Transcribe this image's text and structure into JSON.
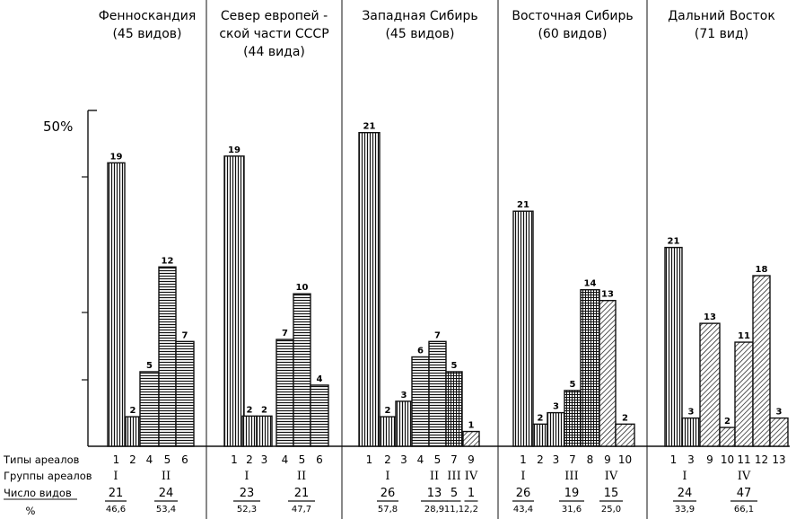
{
  "y_axis_label": "50%",
  "row_labels": {
    "types": "Типы ареалов",
    "groups": "Группы ареалов",
    "count": "Число видов",
    "percent": "%"
  },
  "chart_data": [
    {
      "type": "bar",
      "title_lines": [
        "Фенноскандия",
        "(45 видов)"
      ],
      "ylim": [
        0,
        50
      ],
      "bars": [
        {
          "type": "1",
          "value": 42.2,
          "label": "19",
          "pattern": "vertical"
        },
        {
          "type": "2",
          "value": 4.4,
          "label": "2",
          "pattern": "vertical"
        },
        {
          "type": "4",
          "value": 11.1,
          "label": "5",
          "pattern": "horizontal"
        },
        {
          "type": "5",
          "value": 26.7,
          "label": "12",
          "pattern": "horizontal"
        },
        {
          "type": "6",
          "value": 15.6,
          "label": "7",
          "pattern": "horizontal"
        }
      ],
      "groups": [
        {
          "name": "I",
          "count": "21",
          "percent": "46,6"
        },
        {
          "name": "II",
          "count": "24",
          "percent": "53,4"
        }
      ]
    },
    {
      "type": "bar",
      "title_lines": [
        "Север европей -",
        "ской части СССР",
        "(44 вида)"
      ],
      "ylim": [
        0,
        50
      ],
      "bars": [
        {
          "type": "1",
          "value": 43.2,
          "label": "19",
          "pattern": "vertical"
        },
        {
          "type": "2",
          "value": 4.5,
          "label": "2",
          "pattern": "vertical"
        },
        {
          "type": "3",
          "value": 4.5,
          "label": "2",
          "pattern": "vertical"
        },
        {
          "type": "4",
          "value": 15.9,
          "label": "7",
          "pattern": "horizontal"
        },
        {
          "type": "5",
          "value": 22.7,
          "label": "10",
          "pattern": "horizontal"
        },
        {
          "type": "6",
          "value": 9.1,
          "label": "4",
          "pattern": "horizontal"
        }
      ],
      "groups": [
        {
          "name": "I",
          "count": "23",
          "percent": "52,3"
        },
        {
          "name": "II",
          "count": "21",
          "percent": "47,7"
        }
      ]
    },
    {
      "type": "bar",
      "title_lines": [
        "Западная   Сибирь",
        "(45 видов)"
      ],
      "ylim": [
        0,
        50
      ],
      "bars": [
        {
          "type": "1",
          "value": 46.7,
          "label": "21",
          "pattern": "vertical"
        },
        {
          "type": "2",
          "value": 4.4,
          "label": "2",
          "pattern": "vertical"
        },
        {
          "type": "3",
          "value": 6.7,
          "label": "3",
          "pattern": "vertical"
        },
        {
          "type": "4",
          "value": 13.3,
          "label": "6",
          "pattern": "horizontal"
        },
        {
          "type": "5",
          "value": 15.6,
          "label": "7",
          "pattern": "horizontal"
        },
        {
          "type": "7",
          "value": 11.1,
          "label": "5",
          "pattern": "grid"
        },
        {
          "type": "9",
          "value": 2.2,
          "label": "1",
          "pattern": "diagonal"
        }
      ],
      "groups": [
        {
          "name": "I",
          "count": "26",
          "percent": "57,8"
        },
        {
          "name": "II",
          "count": "13",
          "percent": "28,9"
        },
        {
          "name": "III",
          "count": "5",
          "percent": "11,1"
        },
        {
          "name": "IV",
          "count": "1",
          "percent": "2,2"
        }
      ]
    },
    {
      "type": "bar",
      "title_lines": [
        "Восточная  Сибирь",
        "(60 видов)"
      ],
      "ylim": [
        0,
        50
      ],
      "bars": [
        {
          "type": "1",
          "value": 35.0,
          "label": "21",
          "pattern": "vertical"
        },
        {
          "type": "2",
          "value": 3.3,
          "label": "2",
          "pattern": "vertical"
        },
        {
          "type": "3",
          "value": 5.0,
          "label": "3",
          "pattern": "vertical"
        },
        {
          "type": "7",
          "value": 8.3,
          "label": "5",
          "pattern": "grid"
        },
        {
          "type": "8",
          "value": 23.3,
          "label": "14",
          "pattern": "grid"
        },
        {
          "type": "9",
          "value": 21.7,
          "label": "13",
          "pattern": "diagonal"
        },
        {
          "type": "10",
          "value": 3.3,
          "label": "2",
          "pattern": "diagonal"
        }
      ],
      "groups": [
        {
          "name": "I",
          "count": "26",
          "percent": "43,4"
        },
        {
          "name": "III",
          "count": "19",
          "percent": "31,6"
        },
        {
          "name": "IV",
          "count": "15",
          "percent": "25,0"
        }
      ]
    },
    {
      "type": "bar",
      "title_lines": [
        "Дальний Восток",
        "(71 вид)"
      ],
      "ylim": [
        0,
        50
      ],
      "bars": [
        {
          "type": "1",
          "value": 29.6,
          "label": "21",
          "pattern": "vertical"
        },
        {
          "type": "3",
          "value": 4.2,
          "label": "3",
          "pattern": "vertical"
        },
        {
          "type": "9",
          "value": 18.3,
          "label": "13",
          "pattern": "diagonal"
        },
        {
          "type": "10",
          "value": 2.8,
          "label": "2",
          "pattern": "diagonal"
        },
        {
          "type": "11",
          "value": 15.5,
          "label": "11",
          "pattern": "diagonal"
        },
        {
          "type": "12",
          "value": 25.4,
          "label": "18",
          "pattern": "diagonal"
        },
        {
          "type": "13",
          "value": 4.2,
          "label": "3",
          "pattern": "diagonal"
        }
      ],
      "groups": [
        {
          "name": "I",
          "count": "24",
          "percent": "33,9"
        },
        {
          "name": "IV",
          "count": "47",
          "percent": "66,1"
        }
      ]
    }
  ]
}
